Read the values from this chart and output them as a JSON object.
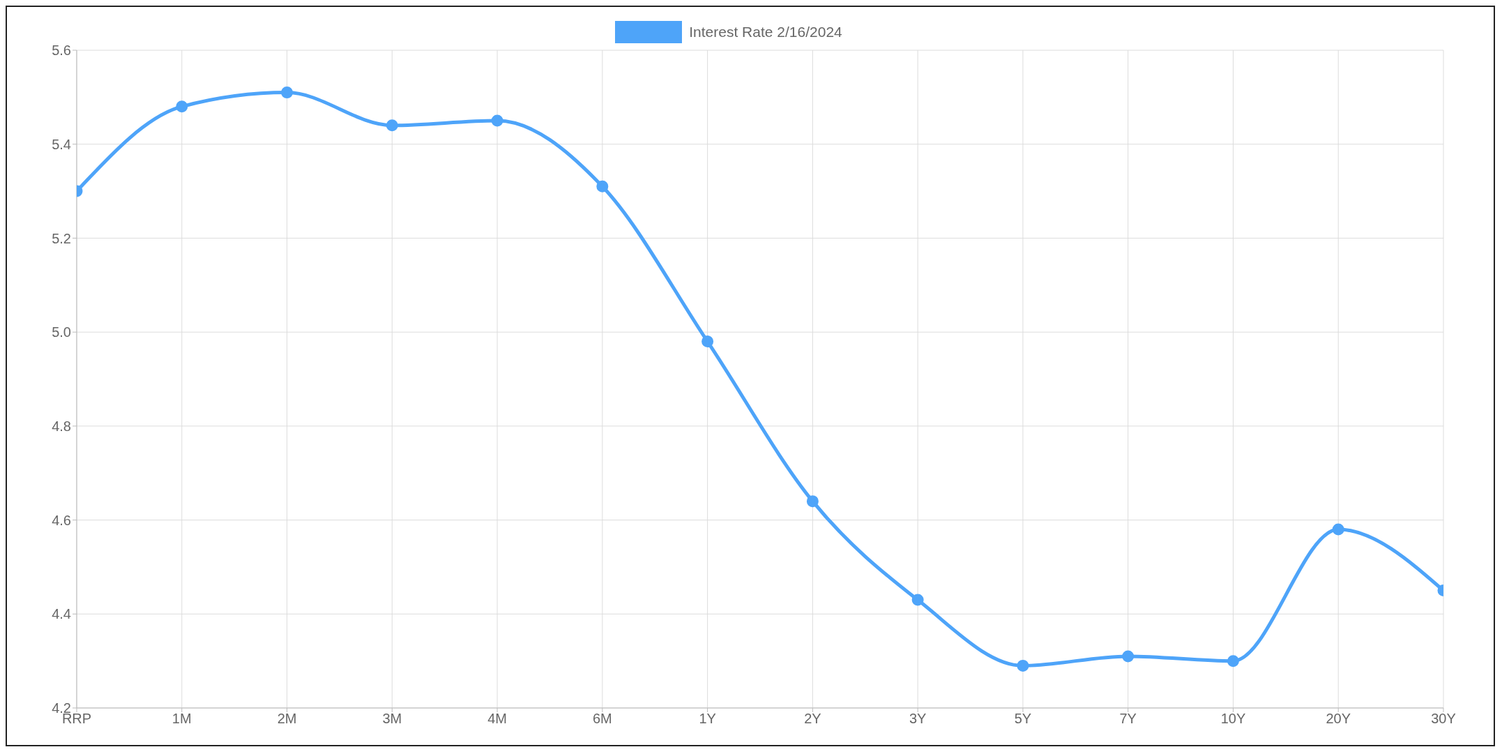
{
  "chart_data": {
    "type": "line",
    "categories": [
      "RRP",
      "1M",
      "2M",
      "3M",
      "4M",
      "6M",
      "1Y",
      "2Y",
      "3Y",
      "5Y",
      "7Y",
      "10Y",
      "20Y",
      "30Y"
    ],
    "series": [
      {
        "name": "Interest Rate 2/16/2024",
        "color": "#4ea4f9",
        "values": [
          5.3,
          5.48,
          5.51,
          5.44,
          5.45,
          5.31,
          4.98,
          4.64,
          4.43,
          4.29,
          4.31,
          4.3,
          4.58,
          4.45
        ]
      }
    ],
    "ylim": [
      4.2,
      5.6
    ],
    "yticks": [
      4.2,
      4.4,
      4.6,
      4.8,
      {
        "value": 5,
        "label": "5.0"
      },
      5.2,
      5.4,
      5.6
    ],
    "grid": true,
    "legend": "top",
    "marker": "circle",
    "line_style": "solid"
  }
}
